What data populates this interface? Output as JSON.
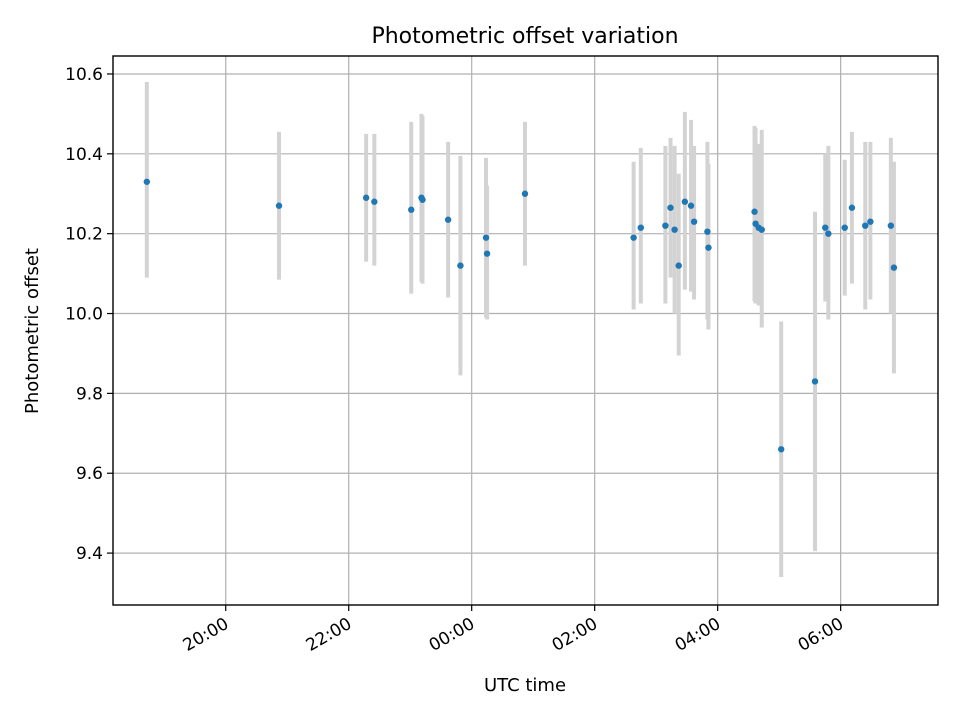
{
  "chart_data": {
    "type": "scatter",
    "title": "Photometric offset variation",
    "xlabel": "UTC time",
    "ylabel": "Photometric offset",
    "ylim": [
      9.27,
      10.645
    ],
    "xlim": [
      "18:10",
      "07:35"
    ],
    "grid": true,
    "x_ticks": [
      "20:00",
      "22:00",
      "00:00",
      "02:00",
      "04:00",
      "06:00"
    ],
    "y_ticks": [
      "9.4",
      "9.6",
      "9.8",
      "10.0",
      "10.2",
      "10.4",
      "10.6"
    ],
    "error_bar_color": "#d3d3d3",
    "point_color": "#1f77b4",
    "points": [
      {
        "x": "18:43",
        "y": 10.33,
        "yerr_low": 10.09,
        "yerr_high": 10.58
      },
      {
        "x": "20:52",
        "y": 10.27,
        "yerr_low": 10.085,
        "yerr_high": 10.455
      },
      {
        "x": "22:17",
        "y": 10.29,
        "yerr_low": 10.13,
        "yerr_high": 10.45
      },
      {
        "x": "22:25",
        "y": 10.28,
        "yerr_low": 10.12,
        "yerr_high": 10.45
      },
      {
        "x": "23:01",
        "y": 10.26,
        "yerr_low": 10.05,
        "yerr_high": 10.48
      },
      {
        "x": "23:11",
        "y": 10.29,
        "yerr_low": 10.08,
        "yerr_high": 10.5
      },
      {
        "x": "23:12",
        "y": 10.285,
        "yerr_low": 10.075,
        "yerr_high": 10.495
      },
      {
        "x": "23:37",
        "y": 10.235,
        "yerr_low": 10.04,
        "yerr_high": 10.43
      },
      {
        "x": "23:49",
        "y": 10.12,
        "yerr_low": 9.845,
        "yerr_high": 10.395
      },
      {
        "x": "00:14",
        "y": 10.19,
        "yerr_low": 9.99,
        "yerr_high": 10.39
      },
      {
        "x": "00:15",
        "y": 10.15,
        "yerr_low": 9.985,
        "yerr_high": 10.32
      },
      {
        "x": "00:52",
        "y": 10.3,
        "yerr_low": 10.12,
        "yerr_high": 10.48
      },
      {
        "x": "02:38",
        "y": 10.19,
        "yerr_low": 10.01,
        "yerr_high": 10.38
      },
      {
        "x": "02:45",
        "y": 10.215,
        "yerr_low": 10.025,
        "yerr_high": 10.415
      },
      {
        "x": "03:09",
        "y": 10.22,
        "yerr_low": 10.025,
        "yerr_high": 10.42
      },
      {
        "x": "03:14",
        "y": 10.265,
        "yerr_low": 10.09,
        "yerr_high": 10.44
      },
      {
        "x": "03:18",
        "y": 10.21,
        "yerr_low": 10.0,
        "yerr_high": 10.42
      },
      {
        "x": "03:22",
        "y": 10.12,
        "yerr_low": 9.895,
        "yerr_high": 10.35
      },
      {
        "x": "03:28",
        "y": 10.28,
        "yerr_low": 10.06,
        "yerr_high": 10.505
      },
      {
        "x": "03:34",
        "y": 10.27,
        "yerr_low": 10.055,
        "yerr_high": 10.485
      },
      {
        "x": "03:37",
        "y": 10.23,
        "yerr_low": 10.035,
        "yerr_high": 10.42
      },
      {
        "x": "03:50",
        "y": 10.205,
        "yerr_low": 9.985,
        "yerr_high": 10.43
      },
      {
        "x": "03:51",
        "y": 10.165,
        "yerr_low": 9.96,
        "yerr_high": 10.375
      },
      {
        "x": "04:36",
        "y": 10.255,
        "yerr_low": 10.03,
        "yerr_high": 10.47
      },
      {
        "x": "04:37",
        "y": 10.225,
        "yerr_low": 10.025,
        "yerr_high": 10.465
      },
      {
        "x": "04:40",
        "y": 10.215,
        "yerr_low": 10.02,
        "yerr_high": 10.425
      },
      {
        "x": "04:43",
        "y": 10.21,
        "yerr_low": 9.965,
        "yerr_high": 10.46
      },
      {
        "x": "05:02",
        "y": 9.66,
        "yerr_low": 9.34,
        "yerr_high": 9.98
      },
      {
        "x": "05:35",
        "y": 9.83,
        "yerr_low": 9.405,
        "yerr_high": 10.255
      },
      {
        "x": "05:45",
        "y": 10.215,
        "yerr_low": 10.03,
        "yerr_high": 10.4
      },
      {
        "x": "05:48",
        "y": 10.2,
        "yerr_low": 9.985,
        "yerr_high": 10.42
      },
      {
        "x": "06:04",
        "y": 10.215,
        "yerr_low": 10.045,
        "yerr_high": 10.385
      },
      {
        "x": "06:11",
        "y": 10.265,
        "yerr_low": 10.075,
        "yerr_high": 10.455
      },
      {
        "x": "06:24",
        "y": 10.22,
        "yerr_low": 10.01,
        "yerr_high": 10.43
      },
      {
        "x": "06:29",
        "y": 10.23,
        "yerr_low": 10.035,
        "yerr_high": 10.43
      },
      {
        "x": "06:49",
        "y": 10.22,
        "yerr_low": 10.0,
        "yerr_high": 10.44
      },
      {
        "x": "06:52",
        "y": 10.115,
        "yerr_low": 9.85,
        "yerr_high": 10.38
      }
    ]
  }
}
